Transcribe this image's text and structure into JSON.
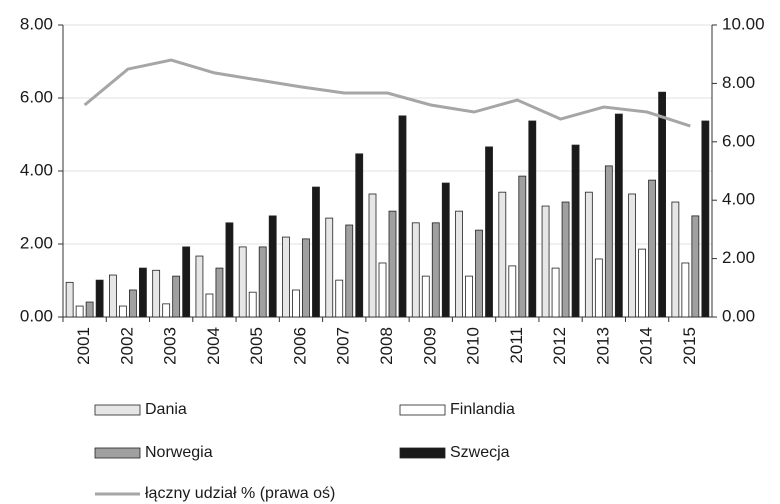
{
  "chart_data": {
    "type": "bar",
    "categories": [
      "2001",
      "2002",
      "2003",
      "2004",
      "2005",
      "2006",
      "2007",
      "2008",
      "2009",
      "2010",
      "2011",
      "2012",
      "2013",
      "2014",
      "2015"
    ],
    "series": [
      {
        "name": "Dania",
        "color": "#e6e6e6",
        "values": [
          0.95,
          1.15,
          1.28,
          1.67,
          1.92,
          2.19,
          2.71,
          3.37,
          2.58,
          2.9,
          3.42,
          3.04,
          3.42,
          3.37,
          3.15
        ]
      },
      {
        "name": "Finlandia",
        "color": "#ffffff",
        "values": [
          0.3,
          0.3,
          0.36,
          0.63,
          0.68,
          0.74,
          1.01,
          1.48,
          1.12,
          1.12,
          1.4,
          1.34,
          1.59,
          1.86,
          1.48
        ]
      },
      {
        "name": "Norwegia",
        "color": "#a0a0a0",
        "values": [
          0.41,
          0.74,
          1.12,
          1.34,
          1.92,
          2.14,
          2.52,
          2.9,
          2.58,
          2.38,
          3.86,
          3.15,
          4.14,
          3.75,
          2.77
        ]
      },
      {
        "name": "Szwecja",
        "color": "#1a1a1a",
        "values": [
          1.01,
          1.34,
          1.92,
          2.58,
          2.77,
          3.56,
          4.47,
          5.51,
          3.67,
          4.66,
          5.37,
          4.71,
          5.56,
          6.16,
          5.37
        ]
      },
      {
        "name": "łączny udział % (prawa oś)",
        "color": "#a6a6a6",
        "type": "line",
        "axis": "y2",
        "values": [
          7.26,
          8.49,
          8.8,
          8.36,
          8.12,
          7.88,
          7.67,
          7.67,
          7.26,
          7.02,
          7.43,
          6.78,
          7.19,
          7.02,
          6.54
        ]
      }
    ],
    "ylim": [
      0,
      8
    ],
    "yticks": [
      {
        "value": 0,
        "label": "0.00"
      },
      {
        "value": 2,
        "label": "2.00"
      },
      {
        "value": 4,
        "label": "4.00"
      },
      {
        "value": 6,
        "label": "6.00"
      },
      {
        "value": 8,
        "label": "8.00"
      }
    ],
    "y2lim": [
      0,
      10
    ],
    "y2ticks": [
      {
        "value": 0,
        "label": "0.00"
      },
      {
        "value": 2,
        "label": "2.00"
      },
      {
        "value": 4,
        "label": "4.00"
      },
      {
        "value": 6,
        "label": "6.00"
      },
      {
        "value": 8,
        "label": "8.00"
      },
      {
        "value": 10,
        "label": "10.00"
      }
    ],
    "grid": true
  }
}
